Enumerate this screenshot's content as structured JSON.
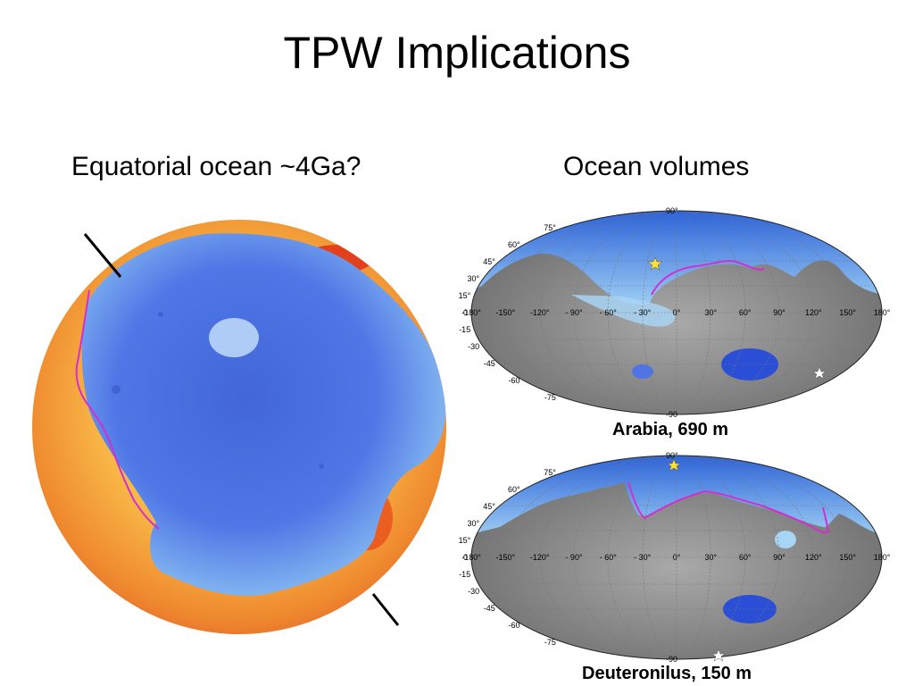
{
  "slide": {
    "title": "TPW Implications",
    "left_heading": "Equatorial ocean ~4Ga?",
    "right_heading": "Ocean volumes"
  },
  "maps": [
    {
      "caption": "Arabia, 690 m",
      "lat_ticks": [
        "90°",
        "75°",
        "60°",
        "45°",
        "30°",
        "15°",
        "0",
        "-15",
        "-30",
        "-45",
        "-60",
        "-75",
        "-90"
      ],
      "lon_ticks": [
        "-180°",
        "-150°",
        "-120°",
        "- 90°",
        "- 60°",
        "- 30°",
        "0°",
        "30°",
        "60°",
        "90°",
        "120°",
        "150°",
        "180°"
      ]
    },
    {
      "caption": "Deuteronilus, 150 m",
      "lat_ticks": [
        "90°",
        "75°",
        "60°",
        "45°",
        "30°",
        "15°",
        "0",
        "-15",
        "-30",
        "-45",
        "-60",
        "-75",
        "-90"
      ],
      "lon_ticks": [
        "-180°",
        "-150°",
        "-120°",
        "- 90°",
        "- 60°",
        "- 30°",
        "0°",
        "30°",
        "60°",
        "90°",
        "120°",
        "150°",
        "180°"
      ]
    }
  ],
  "colors": {
    "ocean_blue": "#4f74e6",
    "ocean_light": "#a8d4f5",
    "highland_orange": "#f39a3a",
    "highland_red": "#e23318",
    "shoreline_magenta": "#d12fd0",
    "land_gray": "#8c8c8c"
  }
}
